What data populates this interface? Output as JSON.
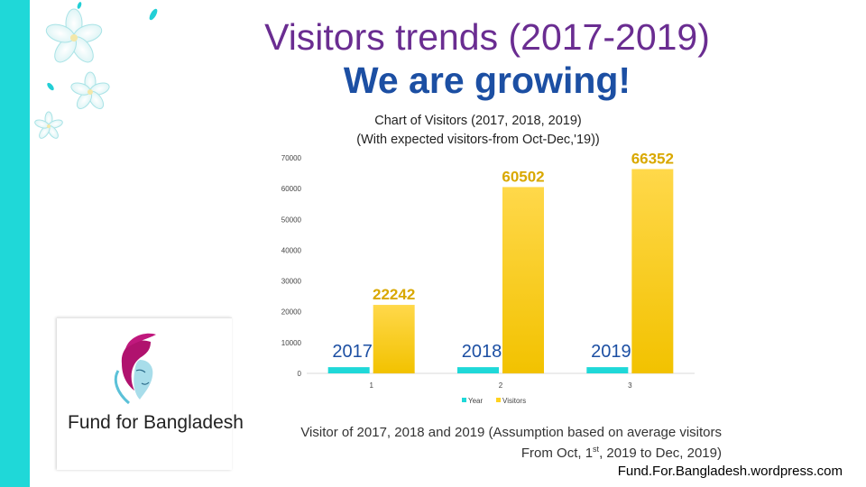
{
  "slide": {
    "title": "Visitors trends (2017-2019)",
    "subtitle": "We are growing!",
    "accent_color": "#1fd8d8",
    "title_color": "#6a2d91",
    "subtitle_color": "#1c4fa3"
  },
  "logo": {
    "text": "Fund for Bangladesh",
    "icon": "woman-face-logo-icon"
  },
  "caption": {
    "line1": "Visitor of 2017, 2018 and 2019 (Assumption based on average visitors",
    "line2_pre": "From Oct, 1",
    "line2_sup": "st",
    "line2_post": ", 2019 to Dec, 2019)"
  },
  "website": "Fund.For.Bangladesh.wordpress.com",
  "chart_data": {
    "type": "bar",
    "title_line1": "Chart of Visitors (2017, 2018, 2019)",
    "title_line2": "(With expected visitors-from Oct-Dec,'19))",
    "categories": [
      "1",
      "2",
      "3"
    ],
    "series": [
      {
        "name": "Year",
        "color": "#1fd8d8",
        "values": [
          2017,
          2018,
          2019
        ]
      },
      {
        "name": "Visitors",
        "color": "#ffd21f",
        "values": [
          22242,
          60502,
          66352
        ]
      }
    ],
    "data_labels": [
      "22242",
      "60502",
      "66352"
    ],
    "year_labels": [
      "2017",
      "2018",
      "2019"
    ],
    "yticks": [
      "0",
      "10000",
      "20000",
      "30000",
      "40000",
      "50000",
      "60000",
      "70000"
    ],
    "ylim": [
      0,
      70000
    ],
    "legend": "bottom",
    "grid": false,
    "data_label_color": "#d9a800",
    "year_label_color": "#1c4fa3"
  }
}
